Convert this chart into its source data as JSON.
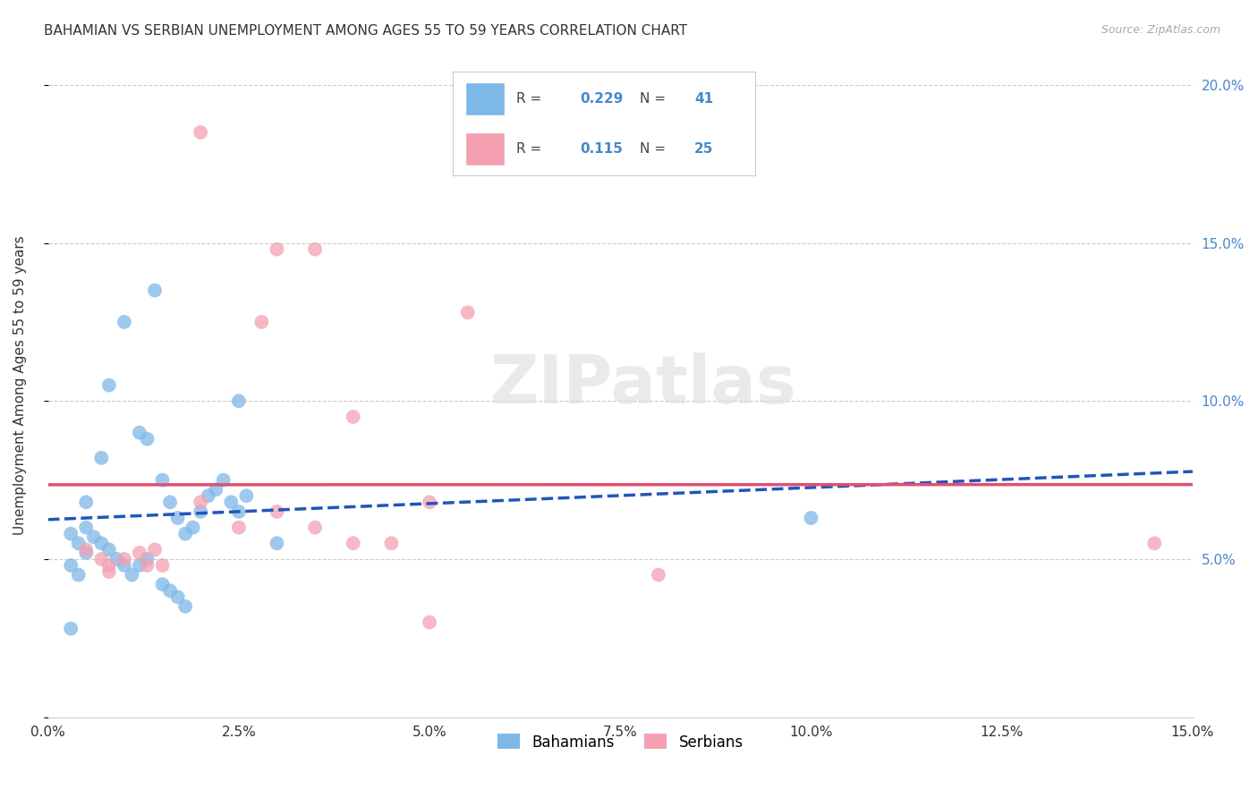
{
  "title": "BAHAMIAN VS SERBIAN UNEMPLOYMENT AMONG AGES 55 TO 59 YEARS CORRELATION CHART",
  "source": "Source: ZipAtlas.com",
  "ylabel": "Unemployment Among Ages 55 to 59 years",
  "xlim": [
    0.0,
    0.15
  ],
  "ylim": [
    0.0,
    0.21
  ],
  "xticks": [
    0.0,
    0.025,
    0.05,
    0.075,
    0.1,
    0.125,
    0.15
  ],
  "xtick_labels": [
    "0.0%",
    "2.5%",
    "5.0%",
    "7.5%",
    "10.0%",
    "12.5%",
    "15.0%"
  ],
  "yticks": [
    0.0,
    0.05,
    0.1,
    0.15,
    0.2
  ],
  "ytick_labels": [
    "",
    "5.0%",
    "10.0%",
    "15.0%",
    "20.0%"
  ],
  "background_color": "#ffffff",
  "grid_color": "#cccccc",
  "bahamas_color": "#7eb8e8",
  "serbia_color": "#f4a0b0",
  "bahamas_line_color": "#2255bb",
  "serbia_line_color": "#e05070",
  "bahamas_points": [
    [
      0.005,
      0.068
    ],
    [
      0.007,
      0.082
    ],
    [
      0.008,
      0.105
    ],
    [
      0.01,
      0.125
    ],
    [
      0.012,
      0.09
    ],
    [
      0.013,
      0.088
    ],
    [
      0.014,
      0.135
    ],
    [
      0.015,
      0.075
    ],
    [
      0.016,
      0.068
    ],
    [
      0.017,
      0.063
    ],
    [
      0.018,
      0.058
    ],
    [
      0.019,
      0.06
    ],
    [
      0.02,
      0.065
    ],
    [
      0.021,
      0.07
    ],
    [
      0.022,
      0.072
    ],
    [
      0.023,
      0.075
    ],
    [
      0.024,
      0.068
    ],
    [
      0.025,
      0.065
    ],
    [
      0.026,
      0.07
    ],
    [
      0.005,
      0.06
    ],
    [
      0.006,
      0.057
    ],
    [
      0.007,
      0.055
    ],
    [
      0.008,
      0.053
    ],
    [
      0.009,
      0.05
    ],
    [
      0.01,
      0.048
    ],
    [
      0.011,
      0.045
    ],
    [
      0.012,
      0.048
    ],
    [
      0.013,
      0.05
    ],
    [
      0.015,
      0.042
    ],
    [
      0.016,
      0.04
    ],
    [
      0.017,
      0.038
    ],
    [
      0.018,
      0.035
    ],
    [
      0.003,
      0.058
    ],
    [
      0.004,
      0.055
    ],
    [
      0.005,
      0.052
    ],
    [
      0.003,
      0.048
    ],
    [
      0.004,
      0.045
    ],
    [
      0.025,
      0.1
    ],
    [
      0.03,
      0.055
    ],
    [
      0.1,
      0.063
    ],
    [
      0.003,
      0.028
    ]
  ],
  "serbia_points": [
    [
      0.02,
      0.185
    ],
    [
      0.03,
      0.148
    ],
    [
      0.035,
      0.148
    ],
    [
      0.028,
      0.125
    ],
    [
      0.04,
      0.095
    ],
    [
      0.05,
      0.068
    ],
    [
      0.02,
      0.068
    ],
    [
      0.025,
      0.06
    ],
    [
      0.03,
      0.065
    ],
    [
      0.035,
      0.06
    ],
    [
      0.04,
      0.055
    ],
    [
      0.045,
      0.055
    ],
    [
      0.005,
      0.053
    ],
    [
      0.007,
      0.05
    ],
    [
      0.008,
      0.048
    ],
    [
      0.01,
      0.05
    ],
    [
      0.012,
      0.052
    ],
    [
      0.013,
      0.048
    ],
    [
      0.014,
      0.053
    ],
    [
      0.015,
      0.048
    ],
    [
      0.05,
      0.03
    ],
    [
      0.055,
      0.128
    ],
    [
      0.08,
      0.045
    ],
    [
      0.145,
      0.055
    ],
    [
      0.008,
      0.046
    ]
  ],
  "legend_r1": "0.229",
  "legend_n1": "41",
  "legend_r2": "0.115",
  "legend_n2": "25",
  "watermark_text": "ZIPatlas",
  "legend_label1": "Bahamians",
  "legend_label2": "Serbians"
}
